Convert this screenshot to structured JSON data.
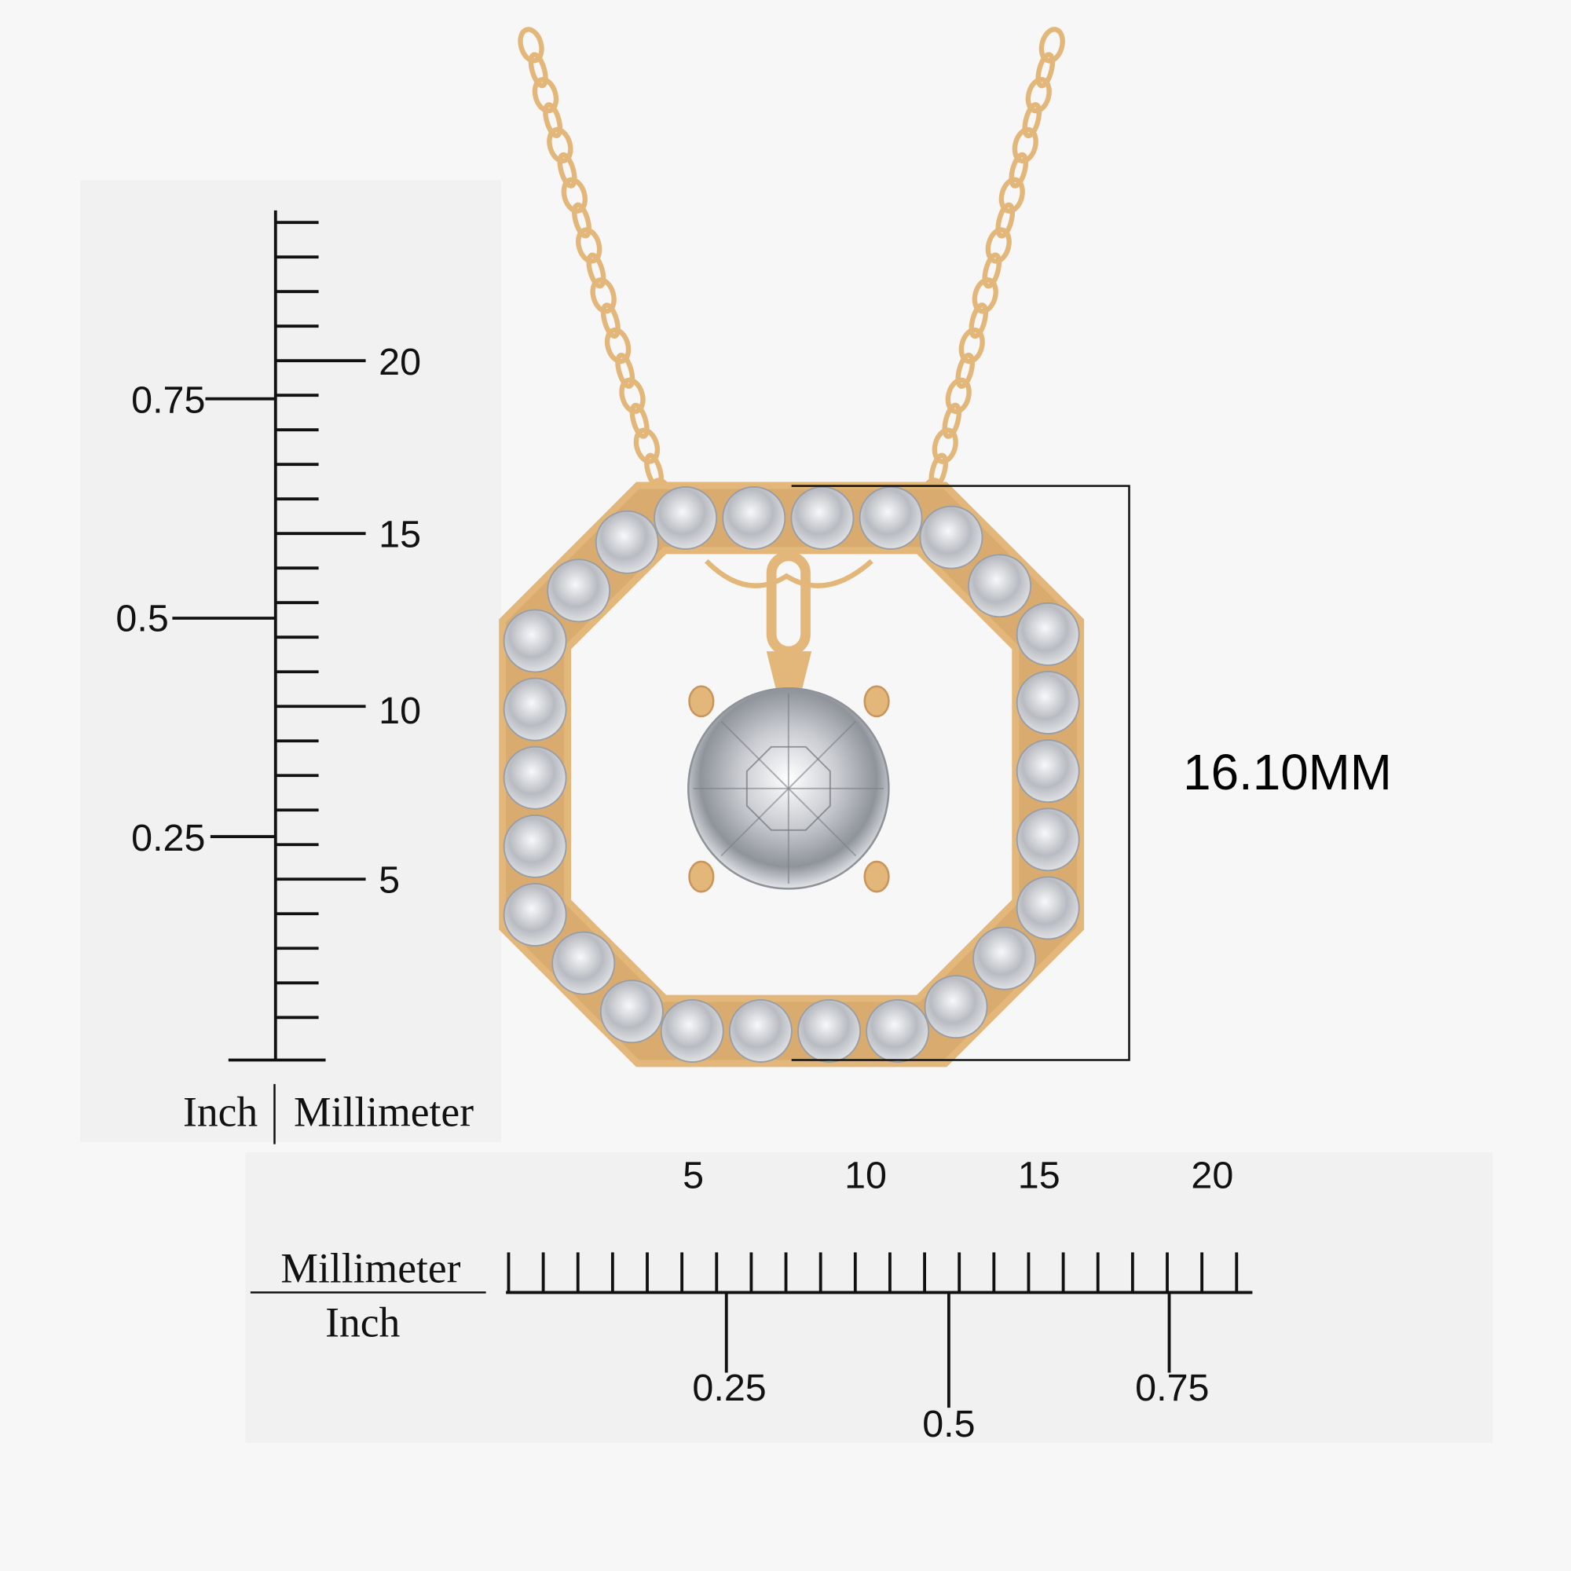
{
  "vertical_ruler": {
    "mm_labels": [
      "20",
      "15",
      "10",
      "5"
    ],
    "inch_labels": [
      "0.75",
      "0.5",
      "0.25"
    ],
    "unit_left": "Inch",
    "unit_right": "Millimeter"
  },
  "horizontal_ruler": {
    "mm_labels": [
      "5",
      "10",
      "15",
      "20"
    ],
    "inch_labels": [
      "0.25",
      "0.5",
      "0.75"
    ],
    "unit_top": "Millimeter",
    "unit_bottom": "Inch"
  },
  "dimension": {
    "label": "16.10MM"
  }
}
